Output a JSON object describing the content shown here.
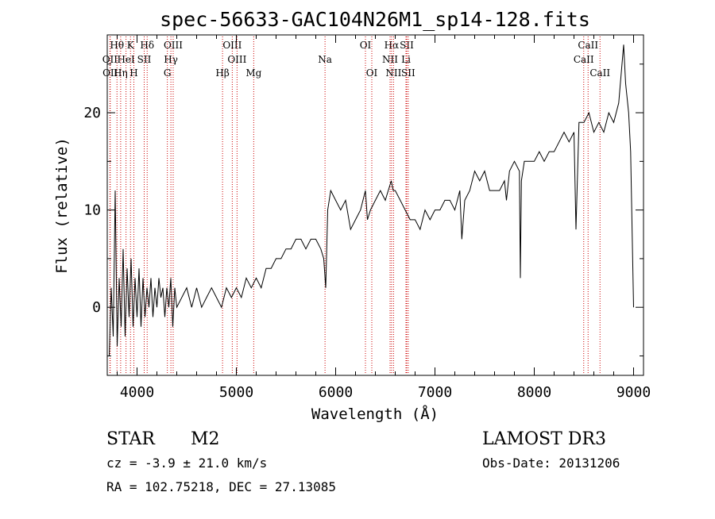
{
  "chart_data": {
    "type": "line",
    "title": "spec-56633-GAC104N26M1_sp14-128.fits",
    "xlabel": "Wavelength (Å)",
    "ylabel": "Flux (relative)",
    "xlim": [
      3700,
      9100
    ],
    "ylim": [
      -7,
      28
    ],
    "xticks": [
      4000,
      5000,
      6000,
      7000,
      8000,
      9000
    ],
    "yticks": [
      0,
      10,
      20
    ],
    "grid": false,
    "line_color": "#000000",
    "marker_color": "#cc0000",
    "series": [
      {
        "x": [
          3720,
          3740,
          3760,
          3780,
          3800,
          3820,
          3840,
          3860,
          3880,
          3900,
          3920,
          3940,
          3960,
          3980,
          4000,
          4020,
          4040,
          4060,
          4080,
          4100,
          4120,
          4140,
          4160,
          4180,
          4200,
          4220,
          4240,
          4260,
          4280,
          4300,
          4320,
          4340,
          4360,
          4380,
          4400,
          4450,
          4500,
          4550,
          4600,
          4650,
          4700,
          4750,
          4800,
          4850,
          4900,
          4950,
          5000,
          5050,
          5100,
          5150,
          5200,
          5250,
          5300,
          5350,
          5400,
          5450,
          5500,
          5550,
          5600,
          5650,
          5700,
          5750,
          5800,
          5850,
          5880,
          5900,
          5920,
          5950,
          6000,
          6050,
          6100,
          6150,
          6200,
          6250,
          6300,
          6320,
          6350,
          6400,
          6450,
          6500,
          6530,
          6560,
          6580,
          6600,
          6650,
          6700,
          6750,
          6800,
          6850,
          6900,
          6950,
          7000,
          7050,
          7100,
          7150,
          7200,
          7250,
          7270,
          7300,
          7350,
          7400,
          7450,
          7500,
          7550,
          7600,
          7650,
          7700,
          7720,
          7750,
          7800,
          7850,
          7860,
          7870,
          7900,
          7950,
          8000,
          8050,
          8100,
          8150,
          8200,
          8250,
          8300,
          8350,
          8400,
          8420,
          8450,
          8500,
          8550,
          8600,
          8650,
          8700,
          8750,
          8800,
          8850,
          8900,
          8920,
          8950,
          8970,
          9000
        ],
        "values": [
          -5,
          2,
          -3,
          12,
          -4,
          3,
          -2,
          6,
          -3,
          4,
          -1,
          5,
          -2,
          3,
          -1,
          4,
          -2,
          3,
          -1,
          2,
          0,
          3,
          -1,
          2,
          0,
          3,
          1,
          2,
          -1,
          2,
          0,
          3,
          -2,
          2,
          0,
          1,
          2,
          0,
          2,
          0,
          1,
          2,
          1,
          0,
          2,
          1,
          2,
          1,
          3,
          2,
          3,
          2,
          4,
          4,
          5,
          5,
          6,
          6,
          7,
          7,
          6,
          7,
          7,
          6,
          5,
          2,
          10,
          12,
          11,
          10,
          11,
          8,
          9,
          10,
          12,
          9,
          10,
          11,
          12,
          11,
          12,
          13,
          12,
          12,
          11,
          10,
          9,
          9,
          8,
          10,
          9,
          10,
          10,
          11,
          11,
          10,
          12,
          7,
          11,
          12,
          14,
          13,
          14,
          12,
          12,
          12,
          13,
          11,
          14,
          15,
          14,
          3,
          13,
          15,
          15,
          15,
          16,
          15,
          16,
          16,
          17,
          18,
          17,
          18,
          8,
          19,
          19,
          20,
          18,
          19,
          18,
          20,
          19,
          21,
          27,
          23,
          20,
          16,
          0
        ],
        "name": ""
      }
    ],
    "line_markers": [
      {
        "label": "Hθ",
        "wavelength": 3798,
        "row": 1
      },
      {
        "label": "K",
        "wavelength": 3934,
        "row": 1
      },
      {
        "label": "Hδ",
        "wavelength": 4102,
        "row": 1
      },
      {
        "label": "OIII",
        "wavelength": 4364,
        "row": 1
      },
      {
        "label": "OIII",
        "wavelength": 4959,
        "row": 1
      },
      {
        "label": "OI",
        "wavelength": 6300,
        "row": 1
      },
      {
        "label": "Hα",
        "wavelength": 6563,
        "row": 1
      },
      {
        "label": "SII",
        "wavelength": 6716,
        "row": 1
      },
      {
        "label": "CaII",
        "wavelength": 8542,
        "row": 1
      },
      {
        "label": "OII",
        "wavelength": 3727,
        "row": 2
      },
      {
        "label": "HeI",
        "wavelength": 3889,
        "row": 2
      },
      {
        "label": "SII",
        "wavelength": 4072,
        "row": 2
      },
      {
        "label": "Hγ",
        "wavelength": 4341,
        "row": 2
      },
      {
        "label": "OIII",
        "wavelength": 5007,
        "row": 2
      },
      {
        "label": "Na",
        "wavelength": 5893,
        "row": 2
      },
      {
        "label": "NII",
        "wavelength": 6548,
        "row": 2
      },
      {
        "label": "Li",
        "wavelength": 6708,
        "row": 2
      },
      {
        "label": "CaII",
        "wavelength": 8498,
        "row": 2
      },
      {
        "label": "OII",
        "wavelength": 3730,
        "row": 3
      },
      {
        "label": "Hη",
        "wavelength": 3835,
        "row": 3
      },
      {
        "label": "H",
        "wavelength": 3968,
        "row": 3
      },
      {
        "label": "G",
        "wavelength": 4305,
        "row": 3
      },
      {
        "label": "Hβ",
        "wavelength": 4861,
        "row": 3
      },
      {
        "label": "Mg",
        "wavelength": 5175,
        "row": 3
      },
      {
        "label": "OI",
        "wavelength": 6364,
        "row": 3
      },
      {
        "label": "NII",
        "wavelength": 6583,
        "row": 3
      },
      {
        "label": "SII",
        "wavelength": 6731,
        "row": 3
      },
      {
        "label": "CaII",
        "wavelength": 8662,
        "row": 3
      }
    ]
  },
  "info": {
    "object_class": "STAR",
    "subclass": "M2",
    "redshift": "cz = -3.9 ± 21.0 km/s",
    "coords": "RA = 102.75218, DEC =  27.13085",
    "survey": "LAMOST DR3",
    "obs_date": "Obs-Date: 20131206"
  }
}
